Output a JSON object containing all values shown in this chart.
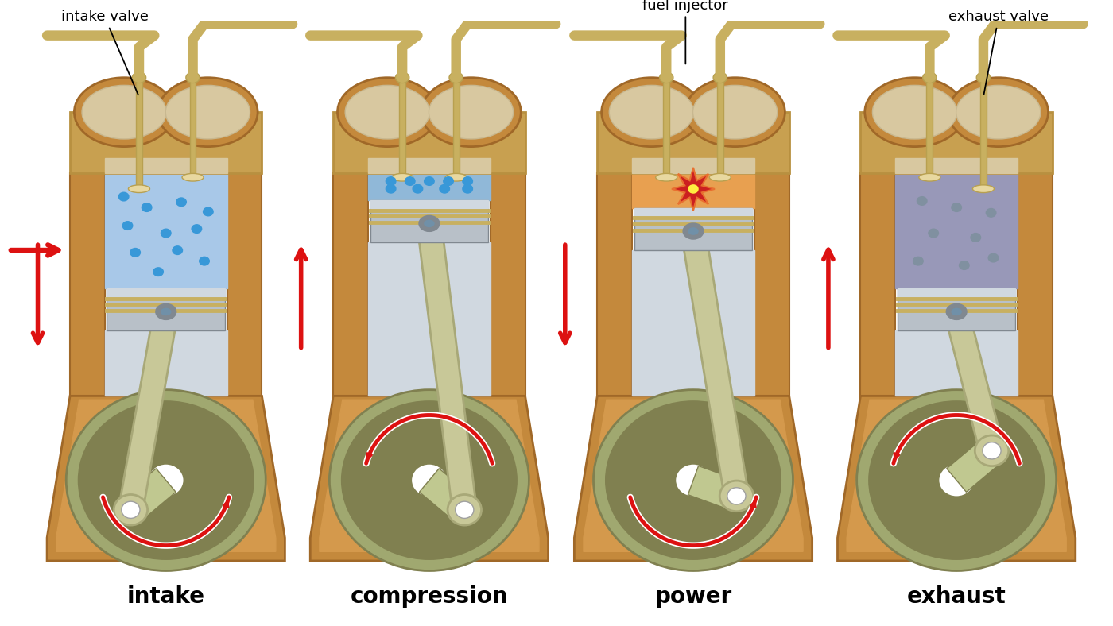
{
  "background_color": "#ffffff",
  "body_brown": "#c4893c",
  "body_brown_dark": "#a06828",
  "body_brown_inner": "#d4994c",
  "cyl_wall": "#c4893c",
  "cyl_blue_intake": "#a8c8e8",
  "cyl_blue_comp": "#90b8d8",
  "cyl_orange_power": "#e8a050",
  "cyl_blue_exhaust": "#9898b8",
  "piston_light": "#d0d8e0",
  "piston_mid": "#b8c0c8",
  "piston_dark": "#808890",
  "ring_gold": "#c8b060",
  "rod_tan": "#c8c898",
  "rod_tan_dark": "#a8a878",
  "crank_olive": "#a0a870",
  "crank_olive_dark": "#808050",
  "crank_olive_light": "#c0c890",
  "head_brown": "#c8a050",
  "head_brown2": "#b89040",
  "port_tan": "#d8c8a0",
  "port_tan2": "#c8b890",
  "valve_gold": "#c8b060",
  "valve_gold2": "#b8a050",
  "valve_cream": "#e8d8a0",
  "dot_blue": "#3898d8",
  "dot_gray": "#8090a0",
  "red_arrow": "#dd1111",
  "spark_red": "#cc2020",
  "spark_orange": "#e87030",
  "white": "#ffffff",
  "black": "#000000",
  "label_intake": "intake",
  "label_compression": "compression",
  "label_power": "power",
  "label_exhaust": "exhaust",
  "ann_intake_valve": "intake valve",
  "ann_fuel_injector": "fuel injector",
  "ann_exhaust_valve": "exhaust valve"
}
